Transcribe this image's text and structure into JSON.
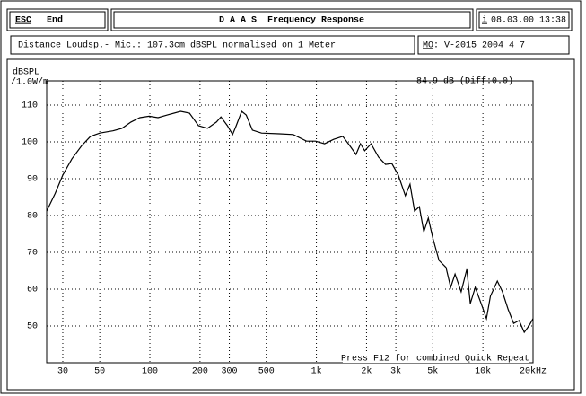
{
  "header": {
    "esc_key": "ESC",
    "esc_label": "End",
    "title": "D A A S  Frequency Response",
    "info_key": "i",
    "datetime": "08.03.00 13:38"
  },
  "info": {
    "measurement": "Distance Loudsp.- Mic.: 107.3cm dBSPL normalised on 1 Meter",
    "model_key": "MO",
    "model": ": V-2015 2004 4 7"
  },
  "chart_data": {
    "type": "line",
    "ylabel": [
      "dBSPL",
      "/1.0W/m"
    ],
    "annotations": [
      "84.9 dB (Diff:0.0)",
      "Press F12 for combined Quick Repeat"
    ],
    "xscale": "log",
    "xlim": [
      24,
      20000
    ],
    "ylim": [
      40,
      116.6
    ],
    "xticks": [
      30,
      50,
      100,
      200,
      300,
      500,
      {
        "value": 1000,
        "label": "1k"
      },
      {
        "value": 2000,
        "label": "2k"
      },
      {
        "value": 3000,
        "label": "3k"
      },
      {
        "value": 5000,
        "label": "5k"
      },
      {
        "value": 10000,
        "label": "10k"
      },
      {
        "value": 20000,
        "label": "20kHz"
      }
    ],
    "yticks": [
      50,
      60,
      70,
      80,
      90,
      100,
      110
    ],
    "grid": true,
    "x": [
      24,
      27,
      30,
      34,
      39,
      44,
      50,
      60,
      68,
      77,
      87,
      99,
      112,
      127,
      153,
      173,
      196,
      222,
      251,
      267,
      292,
      314,
      330,
      356,
      379,
      413,
      468,
      600,
      725,
      872,
      988,
      1120,
      1270,
      1440,
      1585,
      1730,
      1840,
      1950,
      2130,
      2360,
      2600,
      2840,
      3100,
      3420,
      3650,
      3890,
      4150,
      4420,
      4700,
      5000,
      5450,
      6000,
      6400,
      6800,
      7400,
      8000,
      8400,
      9000,
      9850,
      10500,
      11100,
      12200,
      13100,
      14200,
      15300,
      16500,
      17700,
      19000,
      20000
    ],
    "series": [
      {
        "color": "#000000",
        "values": [
          81.2,
          86,
          91,
          95.4,
          99,
          101.5,
          102.4,
          103,
          103.7,
          105.4,
          106.6,
          107,
          106.6,
          107.3,
          108.3,
          107.8,
          104.4,
          103.7,
          105.4,
          106.8,
          104.4,
          102,
          104.4,
          108.3,
          107.3,
          103.2,
          102.4,
          102.2,
          102,
          100.2,
          100.2,
          99.5,
          100.7,
          101.5,
          99,
          96.6,
          99.5,
          97.6,
          99.5,
          95.9,
          93.9,
          94.1,
          91,
          85.4,
          88.5,
          81.2,
          82.4,
          75.6,
          79.3,
          73.9,
          67.8,
          65.9,
          60.5,
          64.1,
          59.3,
          65.4,
          56.1,
          60.5,
          55.6,
          52,
          58.1,
          62.2,
          59.3,
          54.4,
          50.7,
          51.5,
          48.3,
          50.2,
          52
        ]
      }
    ]
  }
}
